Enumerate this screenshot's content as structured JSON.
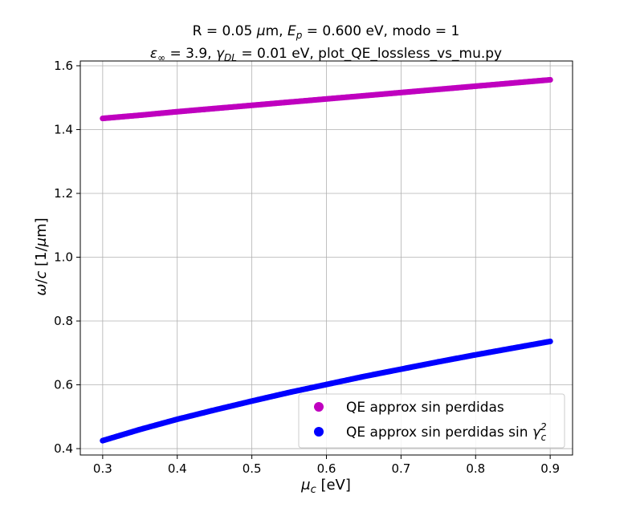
{
  "title": {
    "line1_prefix": "R = 0.05 ",
    "line1_mu": "μ",
    "line1_mid": "m, ",
    "line1_E": "E",
    "line1_Esub": "p",
    "line1_rest": " = 0.600 eV, modo = 1",
    "line2_eps": "ε",
    "line2_epssub": "∞",
    "line2_mid": " = 3.9, ",
    "line2_gamma": "γ",
    "line2_gammasub": "DL",
    "line2_rest": " = 0.01 eV, plot_QE_lossless_vs_mu.py"
  },
  "axes": {
    "xlabel_mu": "μ",
    "xlabel_sub": "c",
    "xlabel_rest": " [eV]",
    "ylabel_omega": "ω",
    "ylabel_slash": "/",
    "ylabel_c": "c",
    "ylabel_rest": " [1/",
    "ylabel_mu": "μ",
    "ylabel_end": "m]"
  },
  "legend": {
    "entry1": "QE approx sin perdidas",
    "entry2_prefix": "QE approx sin perdidas sin ",
    "entry2_gamma": "γ",
    "entry2_sub": "c",
    "entry2_sup": "2"
  },
  "chart_data": {
    "type": "scatter",
    "xlim": [
      0.27,
      0.93
    ],
    "ylim": [
      0.38,
      1.615
    ],
    "xticks": [
      0.3,
      0.4,
      0.5,
      0.6,
      0.7,
      0.8,
      0.9
    ],
    "xtick_labels": [
      "0.3",
      "0.4",
      "0.5",
      "0.6",
      "0.7",
      "0.8",
      "0.9"
    ],
    "yticks": [
      0.4,
      0.6,
      0.8,
      1.0,
      1.2,
      1.4,
      1.6
    ],
    "ytick_labels": [
      "0.4",
      "0.6",
      "0.8",
      "1.0",
      "1.2",
      "1.4",
      "1.6"
    ],
    "grid": true,
    "legend_position": "lower-right",
    "series": [
      {
        "name": "QE approx sin perdidas",
        "color": "#bf00bf",
        "x": [
          0.3,
          0.35,
          0.4,
          0.45,
          0.5,
          0.55,
          0.6,
          0.65,
          0.7,
          0.75,
          0.8,
          0.85,
          0.9
        ],
        "y": [
          1.435,
          1.445,
          1.456,
          1.466,
          1.476,
          1.486,
          1.496,
          1.506,
          1.516,
          1.526,
          1.536,
          1.546,
          1.556
        ]
      },
      {
        "name": "QE approx sin perdidas sin γc²",
        "color": "#0000ff",
        "x": [
          0.3,
          0.35,
          0.4,
          0.45,
          0.5,
          0.55,
          0.6,
          0.65,
          0.7,
          0.75,
          0.8,
          0.85,
          0.9
        ],
        "y": [
          0.425,
          0.46,
          0.492,
          0.521,
          0.549,
          0.576,
          0.601,
          0.626,
          0.649,
          0.672,
          0.694,
          0.715,
          0.736
        ]
      }
    ]
  }
}
